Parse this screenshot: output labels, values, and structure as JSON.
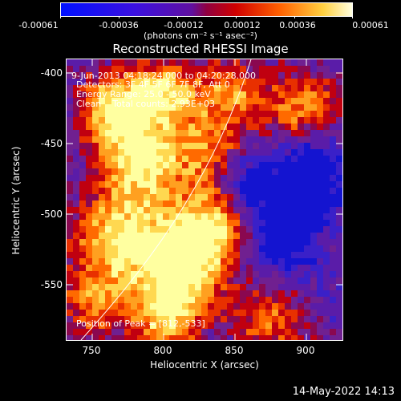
{
  "colorbar": {
    "tick_labels": [
      "-0.00061",
      "-0.00036",
      "-0.00012",
      "0.00012",
      "0.00036",
      "0.00061"
    ],
    "units": "(photons cm⁻² s⁻¹ asec⁻²)"
  },
  "title": "Reconstructed RHESSI Image",
  "info": {
    "time_range": "9-Jun-2013 04:18:24.000 to 04:20:28.000",
    "detectors": "Detectors: 3F 4F 5F 6F 7F 8F, Att 0",
    "energy_range": "Energy Range: 25.0 - 50.0 keV",
    "clean": "Clean    Total counts: 2.93E+03",
    "peak": "Position of Peak = [812,-533]"
  },
  "axes": {
    "xlabel": "Heliocentric X (arcsec)",
    "ylabel": "Heliocentric Y (arcsec)",
    "x_ticks": [
      "750",
      "800",
      "850",
      "900"
    ],
    "y_ticks": [
      "-400",
      "-450",
      "-500",
      "-550"
    ],
    "xlim": [
      728,
      922
    ],
    "ylim": [
      -585,
      -384
    ]
  },
  "footer": {
    "date": "14-May-2022 14:13"
  },
  "colors": {
    "negative": "#0000ff",
    "mid": "#6a20b0",
    "positive_low": "#c00000",
    "positive_high": "#ffff80"
  }
}
